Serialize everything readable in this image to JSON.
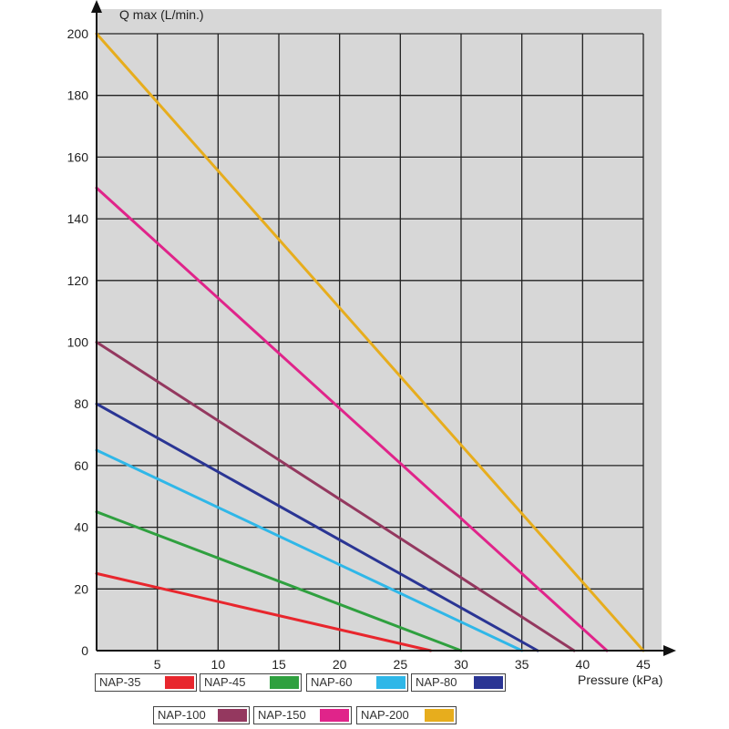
{
  "chart_data": {
    "type": "line",
    "xlabel": "Pressure (kPa)",
    "ylabel": "Q max (L/min.)",
    "xlim": [
      0,
      45
    ],
    "ylim": [
      0,
      200
    ],
    "x_ticks": [
      5,
      10,
      15,
      20,
      25,
      30,
      35,
      40,
      45
    ],
    "y_ticks": [
      0,
      20,
      40,
      60,
      80,
      100,
      120,
      140,
      160,
      180,
      200
    ],
    "grid": true,
    "legend_position": "bottom",
    "series": [
      {
        "name": "NAP-35",
        "color": "#e8262d",
        "points": [
          [
            0,
            25
          ],
          [
            27.5,
            0
          ]
        ]
      },
      {
        "name": "NAP-45",
        "color": "#2fa03f",
        "points": [
          [
            0,
            45
          ],
          [
            30,
            0
          ]
        ]
      },
      {
        "name": "NAP-60",
        "color": "#2fb7e8",
        "points": [
          [
            0,
            65
          ],
          [
            35,
            0
          ]
        ]
      },
      {
        "name": "NAP-80",
        "color": "#2a3594",
        "points": [
          [
            0,
            80
          ],
          [
            36.3,
            0
          ]
        ]
      },
      {
        "name": "NAP-100",
        "color": "#94385f",
        "points": [
          [
            0,
            100
          ],
          [
            39.3,
            0
          ]
        ]
      },
      {
        "name": "NAP-150",
        "color": "#e0248a",
        "points": [
          [
            0,
            150
          ],
          [
            42,
            0
          ]
        ]
      },
      {
        "name": "NAP-200",
        "color": "#e7ad1d",
        "points": [
          [
            0,
            200
          ],
          [
            45,
            0
          ]
        ]
      }
    ]
  }
}
